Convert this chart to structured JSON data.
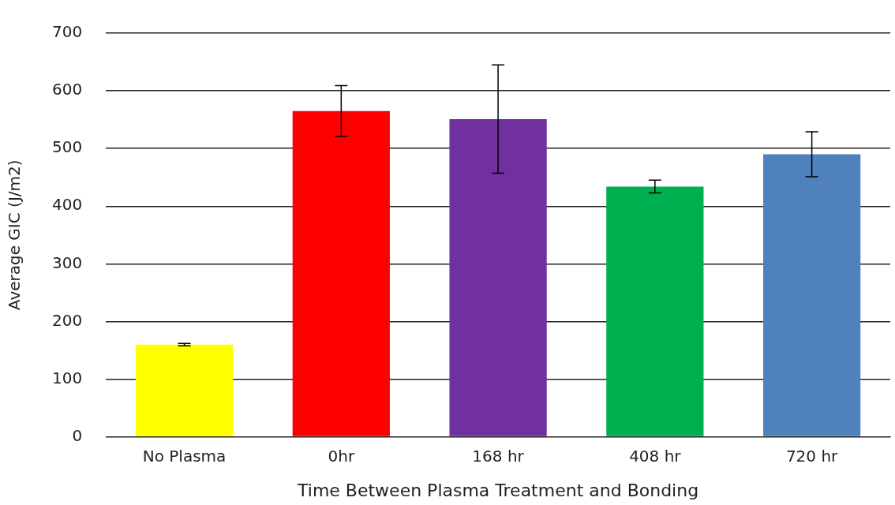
{
  "chart_data": {
    "type": "bar",
    "xlabel": "Time Between Plasma Treatment and Bonding",
    "ylabel": "Average GIC (J/m2)",
    "categories": [
      "No Plasma",
      "0hr",
      "168 hr",
      "408 hr",
      "720 hr"
    ],
    "values": [
      160,
      565,
      551,
      434,
      490
    ],
    "errors": [
      2,
      44,
      94,
      11,
      39
    ],
    "colors": [
      "#ffff00",
      "#ff0000",
      "#7030a0",
      "#00b050",
      "#4f81bd"
    ],
    "ylim": [
      0,
      700
    ],
    "yticks": [
      0,
      100,
      200,
      300,
      400,
      500,
      600,
      700
    ],
    "grid": "y"
  }
}
